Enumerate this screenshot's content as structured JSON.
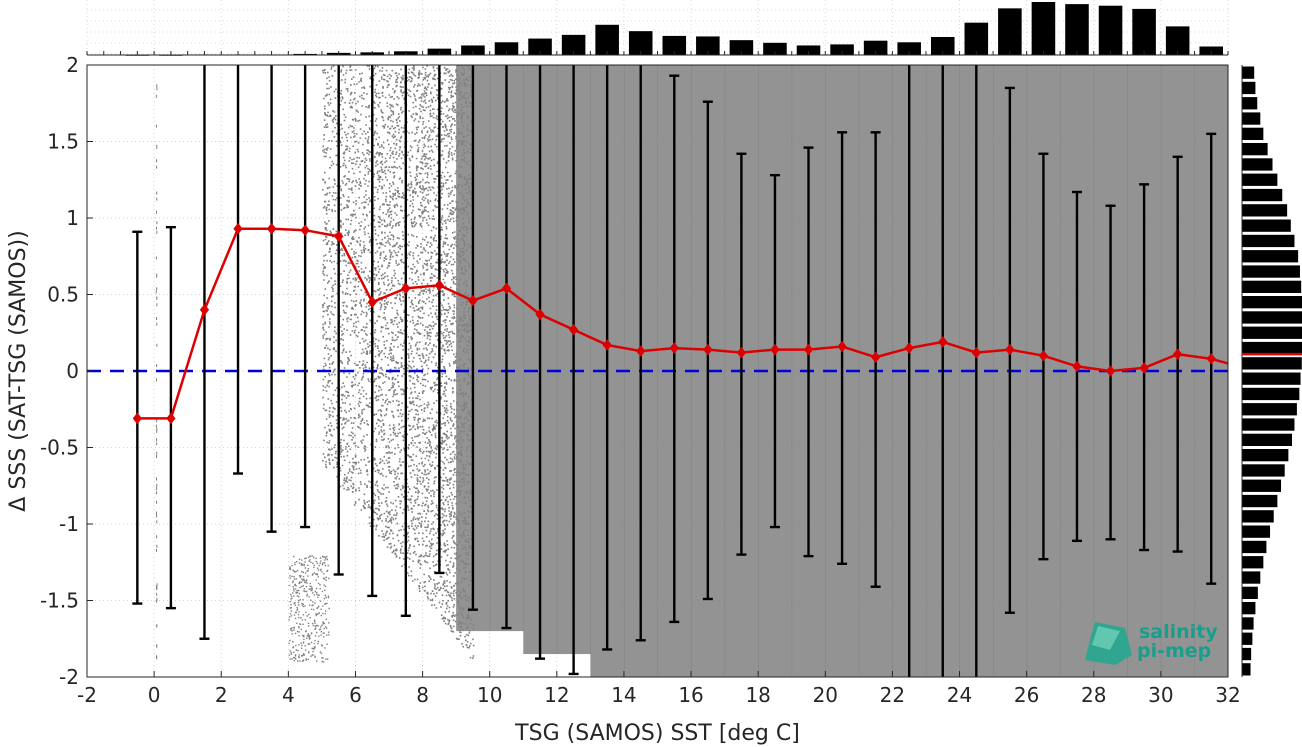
{
  "chart_data": {
    "type": "scatter",
    "xlabel": "TSG (SAMOS) SST [deg C]",
    "ylabel": "Δ SSS (SAT-TSG (SAMOS))",
    "xlim": [
      -2,
      32
    ],
    "ylim": [
      -2,
      2
    ],
    "x_ticks": [
      "-2",
      "0",
      "2",
      "4",
      "6",
      "8",
      "10",
      "12",
      "14",
      "16",
      "18",
      "20",
      "22",
      "24",
      "26",
      "28",
      "30",
      "32"
    ],
    "y_ticks": [
      "2",
      "1.5",
      "1",
      "0.5",
      "0",
      "-0.5",
      "-1",
      "-1.5",
      "-2"
    ],
    "grid": true,
    "reference_line": {
      "y": 0,
      "style": "dashed",
      "color": "#0000dd"
    },
    "scatter_color": "#808080",
    "mean_series": {
      "color": "#dd0000",
      "marker": "diamond",
      "x": [
        -0.5,
        0.5,
        1.5,
        2.5,
        3.5,
        4.5,
        5.5,
        6.5,
        7.5,
        8.5,
        9.5,
        10.5,
        11.5,
        12.5,
        13.5,
        14.5,
        15.5,
        16.5,
        17.5,
        18.5,
        19.5,
        20.5,
        21.5,
        22.5,
        23.5,
        24.5,
        25.5,
        26.5,
        27.5,
        28.5,
        29.5,
        30.5,
        31.5
      ],
      "y": [
        -0.31,
        -0.31,
        0.4,
        0.93,
        0.93,
        0.92,
        0.88,
        0.45,
        0.54,
        0.56,
        0.46,
        0.54,
        0.37,
        0.27,
        0.17,
        0.13,
        0.15,
        0.14,
        0.12,
        0.14,
        0.14,
        0.16,
        0.09,
        0.15,
        0.19,
        0.12,
        0.14,
        0.1,
        0.03,
        0.0,
        0.02,
        0.11,
        0.08
      ],
      "err_low": [
        -1.52,
        -1.55,
        -1.75,
        -0.67,
        -1.05,
        -1.02,
        -1.33,
        -1.47,
        -1.6,
        -1.32,
        -1.56,
        -1.68,
        -1.88,
        -1.98,
        -1.82,
        -1.76,
        -1.64,
        -1.49,
        -1.2,
        -1.02,
        -1.21,
        -1.26,
        -1.41,
        -2,
        -2,
        -2,
        -1.58,
        -1.23,
        -1.11,
        -1.1,
        -1.17,
        -1.18,
        -1.39
      ],
      "err_high": [
        0.91,
        0.94,
        2,
        2,
        2,
        2,
        2,
        2,
        2,
        2,
        2,
        2,
        2,
        2,
        2,
        2,
        1.93,
        1.76,
        1.42,
        1.28,
        1.46,
        1.56,
        1.56,
        2,
        2,
        2,
        1.85,
        1.42,
        1.17,
        1.08,
        1.22,
        1.4,
        1.55
      ]
    },
    "top_histogram": {
      "color": "#000000",
      "bins": [
        -0.5,
        0.5,
        1.5,
        2.5,
        3.5,
        4.5,
        5.5,
        6.5,
        7.5,
        8.5,
        9.5,
        10.5,
        11.5,
        12.5,
        13.5,
        14.5,
        15.5,
        16.5,
        17.5,
        18.5,
        19.5,
        20.5,
        21.5,
        22.5,
        23.5,
        24.5,
        25.5,
        26.5,
        27.5,
        28.5,
        29.5,
        30.5,
        31.5
      ],
      "counts": [
        0.005,
        0.005,
        0.01,
        0.01,
        0.01,
        0.02,
        0.04,
        0.05,
        0.07,
        0.12,
        0.18,
        0.24,
        0.31,
        0.38,
        0.57,
        0.45,
        0.36,
        0.35,
        0.28,
        0.23,
        0.18,
        0.2,
        0.27,
        0.24,
        0.34,
        0.61,
        0.88,
        1.0,
        0.96,
        0.93,
        0.87,
        0.54,
        0.16
      ]
    },
    "right_histogram": {
      "color": "#000000",
      "mean_line_y": 0.11,
      "mean_line_color": "#dd0000",
      "bins": [
        1.95,
        1.85,
        1.75,
        1.65,
        1.55,
        1.45,
        1.35,
        1.25,
        1.15,
        1.05,
        0.95,
        0.85,
        0.75,
        0.65,
        0.55,
        0.45,
        0.35,
        0.25,
        0.15,
        0.05,
        -0.05,
        -0.15,
        -0.25,
        -0.35,
        -0.45,
        -0.55,
        -0.65,
        -0.75,
        -0.85,
        -0.95,
        -1.05,
        -1.15,
        -1.25,
        -1.35,
        -1.45,
        -1.55,
        -1.65,
        -1.75,
        -1.85,
        -1.95
      ],
      "counts": [
        0.2,
        0.22,
        0.25,
        0.3,
        0.35,
        0.42,
        0.5,
        0.58,
        0.66,
        0.74,
        0.8,
        0.86,
        0.92,
        0.95,
        0.97,
        0.99,
        1.0,
        1.0,
        1.0,
        0.98,
        0.96,
        0.94,
        0.9,
        0.86,
        0.82,
        0.76,
        0.7,
        0.64,
        0.58,
        0.52,
        0.46,
        0.4,
        0.35,
        0.3,
        0.26,
        0.22,
        0.19,
        0.17,
        0.15,
        0.14
      ]
    }
  },
  "logo": {
    "line1": "salinity",
    "line2": "pi-mep"
  }
}
